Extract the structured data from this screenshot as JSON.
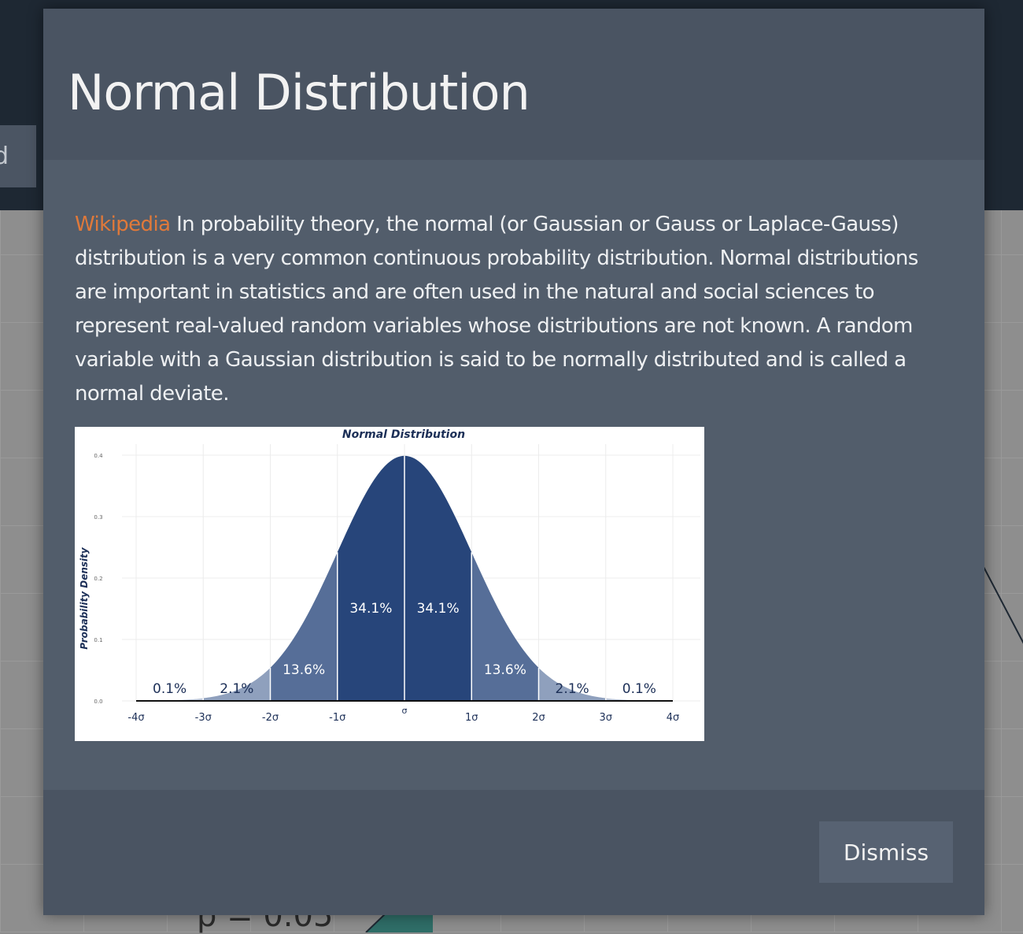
{
  "background": {
    "tab_label": "d",
    "p_value_text": "p = 0.05"
  },
  "modal": {
    "title": "Normal Distribution",
    "link_text": "Wikipedia",
    "description": "In probability theory, the normal (or Gaussian or Gauss or Laplace-Gauss) distribution is a very common continuous probability distribution. Normal distributions are important in statistics and are often used in the natural and social sciences to represent real-valued random variables whose distributions are not known. A random variable with a Gaussian distribution is said to be normally distributed and is called a normal deviate.",
    "dismiss_label": "Dismiss"
  },
  "colors": {
    "link": "#e0793a",
    "core_band": "#27457a",
    "mid_band": "#566e98",
    "outer_band": "#8fa0bd",
    "tail_band": "#bcc6d8"
  },
  "chart_data": {
    "type": "area",
    "title": "Normal Distribution",
    "ylabel": "Probability Density",
    "xlabel": "",
    "xlim": [
      -4,
      4
    ],
    "ylim": [
      0,
      0.4
    ],
    "y_ticks": [
      "0.0",
      "0.1",
      "0.2",
      "0.3",
      "0.4"
    ],
    "y_tick_values": [
      0,
      0.1,
      0.2,
      0.3,
      0.4
    ],
    "x_ticks": [
      "-4σ",
      "-3σ",
      "-2σ",
      "-1σ",
      "σ",
      "1σ",
      "2σ",
      "3σ",
      "4σ"
    ],
    "x_tick_values": [
      -4,
      -3,
      -2,
      -1,
      0,
      1,
      2,
      3,
      4
    ],
    "grid": true,
    "bands": [
      {
        "from": -4,
        "to": -3,
        "label": "0.1%"
      },
      {
        "from": -3,
        "to": -2,
        "label": "2.1%"
      },
      {
        "from": -2,
        "to": -1,
        "label": "13.6%"
      },
      {
        "from": -1,
        "to": 0,
        "label": "34.1%"
      },
      {
        "from": 0,
        "to": 1,
        "label": "34.1%"
      },
      {
        "from": 1,
        "to": 2,
        "label": "13.6%"
      },
      {
        "from": 2,
        "to": 3,
        "label": "2.1%"
      },
      {
        "from": 3,
        "to": 4,
        "label": "0.1%"
      }
    ]
  }
}
